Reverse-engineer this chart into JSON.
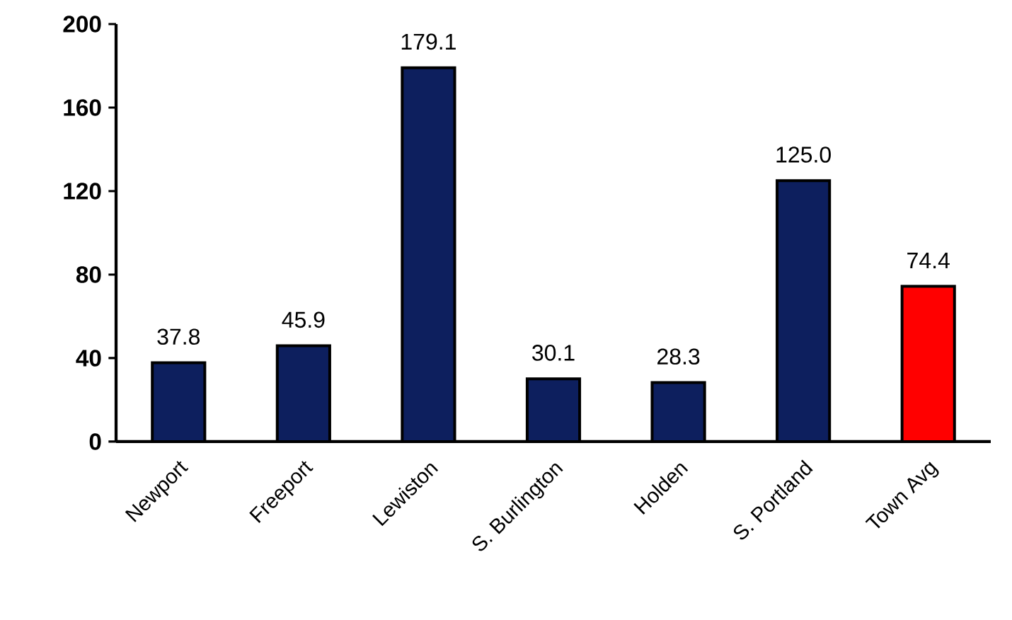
{
  "chart_data": {
    "type": "bar",
    "categories": [
      "Newport",
      "Freeport",
      "Lewiston",
      "S. Burlington",
      "Holden",
      "S. Portland",
      "Town Avg"
    ],
    "values": [
      37.8,
      45.9,
      179.1,
      30.1,
      28.3,
      125.0,
      74.4
    ],
    "value_labels": [
      "37.8",
      "45.9",
      "179.1",
      "30.1",
      "28.3",
      "125.0",
      "74.4"
    ],
    "colors": [
      "#0d1f5e",
      "#0d1f5e",
      "#0d1f5e",
      "#0d1f5e",
      "#0d1f5e",
      "#0d1f5e",
      "#ff0000"
    ],
    "ylim": [
      0,
      200
    ],
    "yticks": [
      0,
      40,
      80,
      120,
      160,
      200
    ]
  }
}
